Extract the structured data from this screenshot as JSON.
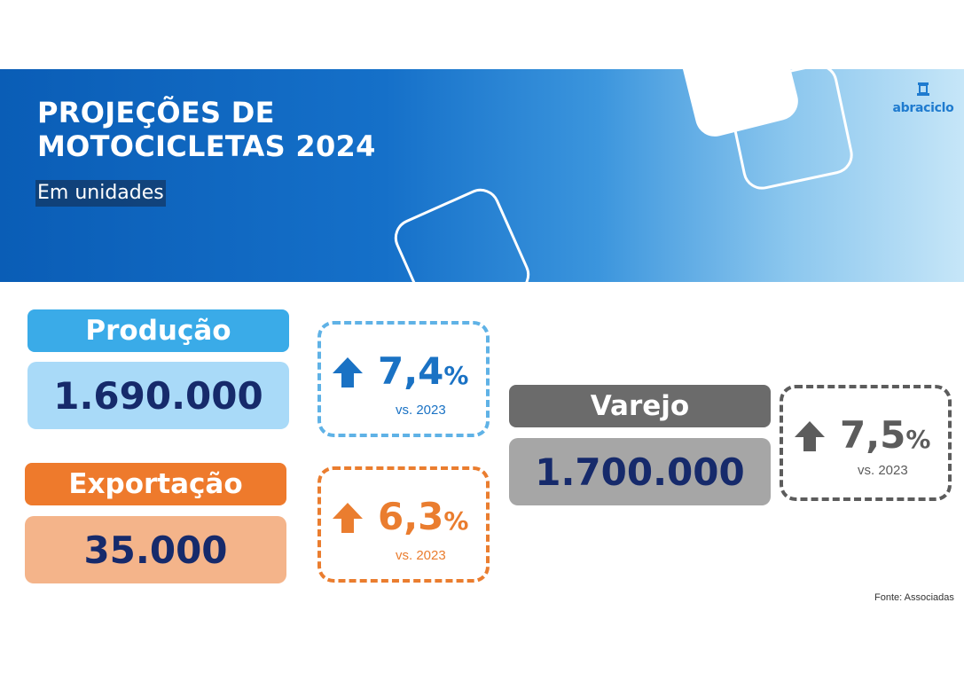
{
  "header": {
    "title_line1": "PROJEÇÕES DE",
    "title_line2": "MOTOCICLETAS 2024",
    "subtitle": "Em unidades",
    "logo_text": "abraciclo",
    "logo_icon": "tower-icon"
  },
  "colors": {
    "producao_label": "#3aabe8",
    "producao_value": "#a9daf8",
    "producao_accent": "#1a72c4",
    "exportacao_label": "#ee7a2c",
    "exportacao_value": "#f4b48a",
    "exportacao_accent": "#ea7d2f",
    "varejo_label": "#6b6b6b",
    "varejo_value": "#a6a6a6",
    "varejo_accent": "#5c5c5c",
    "value_text": "#162a6b"
  },
  "metrics": {
    "producao": {
      "label": "Produção",
      "value": "1.690.000",
      "change": "7,4",
      "unit": "%",
      "compare": "vs. 2023",
      "icon": "arrow-up-icon"
    },
    "exportacao": {
      "label": "Exportação",
      "value": "35.000",
      "change": "6,3",
      "unit": "%",
      "compare": "vs. 2023",
      "icon": "arrow-up-icon"
    },
    "varejo": {
      "label": "Varejo",
      "value": "1.700.000",
      "change": "7,5",
      "unit": "%",
      "compare": "vs. 2023",
      "icon": "arrow-up-icon"
    }
  },
  "footer": {
    "source": "Fonte: Associadas"
  }
}
